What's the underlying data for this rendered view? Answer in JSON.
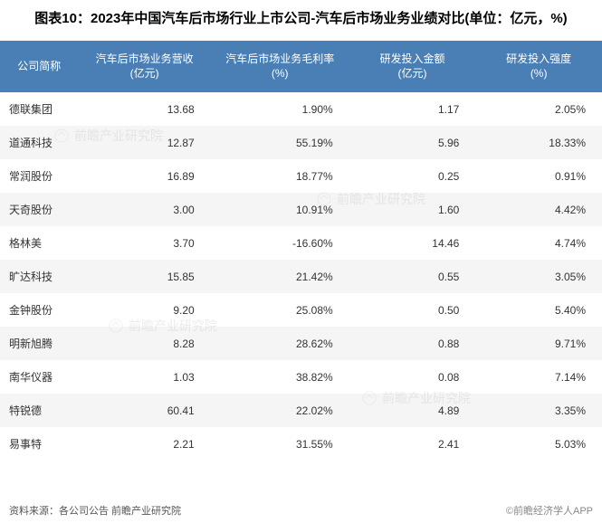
{
  "title": "图表10：2023年中国汽车后市场行业上市公司-汽车后市场业务业绩对比(单位：亿元，%)",
  "columns": [
    "公司简称",
    "汽车后市场业务营收\n(亿元)",
    "汽车后市场业务毛利率\n(%)",
    "研发投入金额\n(亿元)",
    "研发投入强度\n(%)"
  ],
  "rows": [
    {
      "c0": "德联集团",
      "c1": "13.68",
      "c2": "1.90%",
      "c3": "1.17",
      "c4": "2.05%"
    },
    {
      "c0": "道通科技",
      "c1": "12.87",
      "c2": "55.19%",
      "c3": "5.96",
      "c4": "18.33%"
    },
    {
      "c0": "常润股份",
      "c1": "16.89",
      "c2": "18.77%",
      "c3": "0.25",
      "c4": "0.91%"
    },
    {
      "c0": "天奇股份",
      "c1": "3.00",
      "c2": "10.91%",
      "c3": "1.60",
      "c4": "4.42%"
    },
    {
      "c0": "格林美",
      "c1": "3.70",
      "c2": "-16.60%",
      "c3": "14.46",
      "c4": "4.74%"
    },
    {
      "c0": "旷达科技",
      "c1": "15.85",
      "c2": "21.42%",
      "c3": "0.55",
      "c4": "3.05%"
    },
    {
      "c0": "金钟股份",
      "c1": "9.20",
      "c2": "25.08%",
      "c3": "0.50",
      "c4": "5.40%"
    },
    {
      "c0": "明新旭腾",
      "c1": "8.28",
      "c2": "28.62%",
      "c3": "0.88",
      "c4": "9.71%"
    },
    {
      "c0": "南华仪器",
      "c1": "1.03",
      "c2": "38.82%",
      "c3": "0.08",
      "c4": "7.14%"
    },
    {
      "c0": "特锐德",
      "c1": "60.41",
      "c2": "22.02%",
      "c3": "4.89",
      "c4": "3.35%"
    },
    {
      "c0": "易事特",
      "c1": "2.21",
      "c2": "31.55%",
      "c3": "2.41",
      "c4": "5.03%"
    }
  ],
  "source": "资料来源：各公司公告 前瞻产业研究院",
  "brand": "©前瞻经济学人APP",
  "watermark": "前瞻产业研究院",
  "styling": {
    "header_bg": "#4a7fb5",
    "header_text": "#ffffff",
    "row_odd_bg": "#ffffff",
    "row_even_bg": "#f5f5f5",
    "text_color": "#333333",
    "title_fontsize": 15,
    "cell_fontsize": 12,
    "footer_fontsize": 11,
    "column_widths_pct": [
      13,
      22,
      23,
      21,
      21
    ],
    "column_align": [
      "left",
      "right",
      "right",
      "right",
      "right"
    ]
  }
}
